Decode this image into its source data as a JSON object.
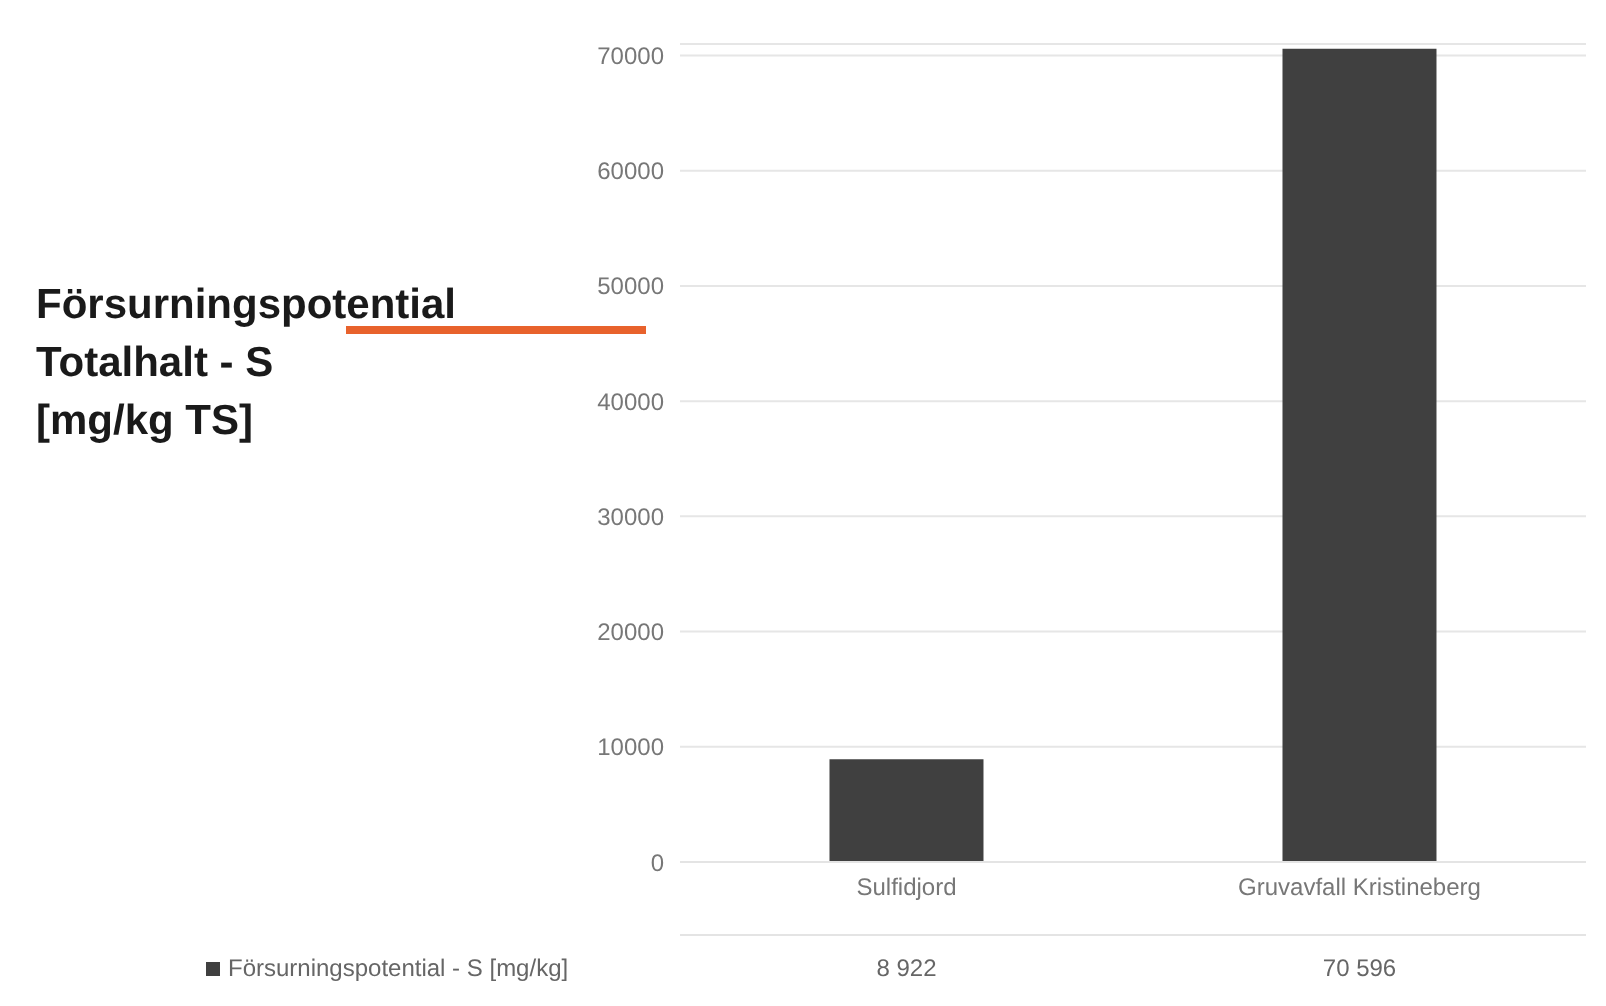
{
  "chart_data": {
    "type": "bar",
    "title": "Försurningspotential\nTotalhalt - S\n[mg/kg TS]",
    "categories": [
      "Sulfidjord",
      "Gruvavfall Kristineberg"
    ],
    "series": [
      {
        "name": "Försurningspotential - S [mg/kg]",
        "color": "#404040",
        "values": [
          8922,
          70596
        ],
        "value_labels": [
          "8 922",
          "70 596"
        ]
      }
    ],
    "ylim": [
      0,
      71000
    ],
    "yticks": [
      0,
      10000,
      20000,
      30000,
      40000,
      50000,
      60000,
      70000
    ],
    "grid": "y",
    "legend": "bottom"
  }
}
